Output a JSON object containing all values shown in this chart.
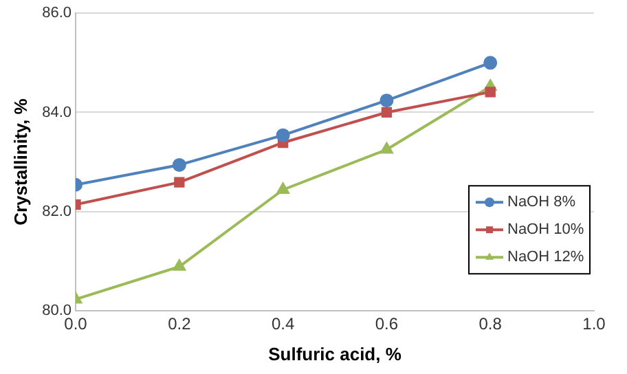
{
  "chart_data": {
    "type": "line",
    "xlabel": "Sulfuric acid, %",
    "ylabel": "Crystallinity, %",
    "x": [
      0,
      0.2,
      0.4,
      0.6,
      0.8
    ],
    "series": [
      {
        "name": "NaOH 8%",
        "color": "#4f81bd",
        "marker": "circle",
        "values": [
          82.54,
          82.94,
          83.54,
          84.24,
          85.0
        ]
      },
      {
        "name": "NaOH 10%",
        "color": "#c0504d",
        "marker": "square",
        "values": [
          82.14,
          82.59,
          83.39,
          84.0,
          84.41
        ]
      },
      {
        "name": "NaOH 12%",
        "color": "#9bbb59",
        "marker": "triangle",
        "values": [
          80.23,
          80.89,
          82.44,
          83.25,
          84.52
        ]
      }
    ],
    "xlim": [
      0,
      1
    ],
    "xticks": [
      {
        "value": 0,
        "label": "0.0"
      },
      {
        "value": 0.2,
        "label": "0.2"
      },
      {
        "value": 0.4,
        "label": "0.4"
      },
      {
        "value": 0.6,
        "label": "0.6"
      },
      {
        "value": 0.8,
        "label": "0.8"
      },
      {
        "value": 1,
        "label": "1.0"
      }
    ],
    "ylim": [
      80,
      86
    ],
    "yticks": [
      {
        "value": 80,
        "label": "80.0"
      },
      {
        "value": 82,
        "label": "82.0"
      },
      {
        "value": 84,
        "label": "84.0"
      },
      {
        "value": 86,
        "label": "86.0"
      }
    ],
    "grid": "y",
    "legend": "right"
  }
}
